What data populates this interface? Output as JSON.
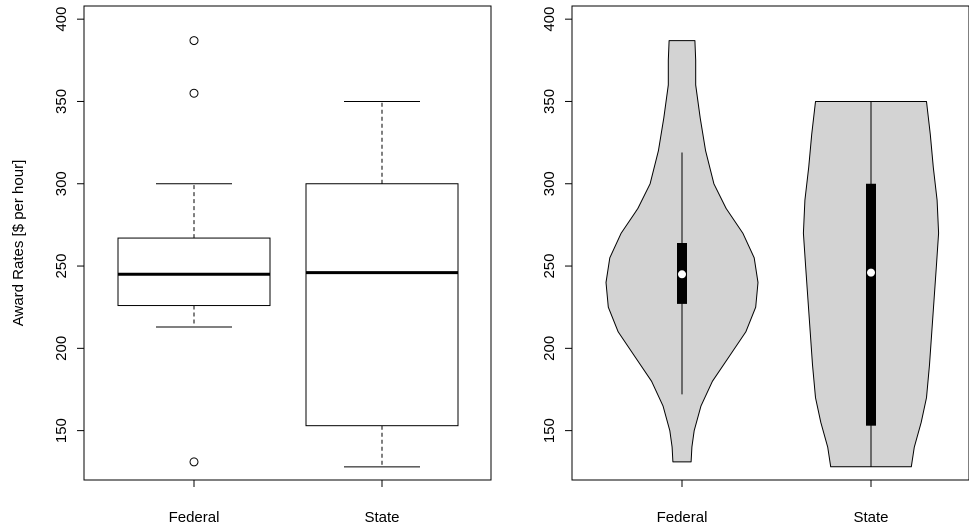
{
  "chart_data": [
    {
      "type": "boxplot",
      "ylabel": "Award Rates [$ per hour]",
      "ylim": [
        120,
        408
      ],
      "yticks": [
        150,
        200,
        250,
        300,
        350,
        400
      ],
      "categories": [
        "Federal",
        "State"
      ],
      "boxes": [
        {
          "name": "Federal",
          "whisker_low": 213,
          "q1": 226,
          "median": 245,
          "q3": 267,
          "whisker_high": 300,
          "outliers": [
            131,
            355,
            387
          ]
        },
        {
          "name": "State",
          "whisker_low": 128,
          "q1": 153,
          "median": 246,
          "q3": 300,
          "whisker_high": 350,
          "outliers": []
        }
      ]
    },
    {
      "type": "violin",
      "ylim": [
        120,
        408
      ],
      "yticks": [
        150,
        200,
        250,
        300,
        350,
        400
      ],
      "categories": [
        "Federal",
        "State"
      ],
      "violin_fill": "#d3d3d3",
      "violins": [
        {
          "name": "Federal",
          "median": 245,
          "q1": 227,
          "q3": 264,
          "whisker_low": 172,
          "whisker_high": 319,
          "density": [
            [
              131,
              0.12
            ],
            [
              140,
              0.13
            ],
            [
              150,
              0.16
            ],
            [
              165,
              0.25
            ],
            [
              180,
              0.4
            ],
            [
              195,
              0.62
            ],
            [
              210,
              0.84
            ],
            [
              225,
              0.97
            ],
            [
              240,
              1.0
            ],
            [
              255,
              0.95
            ],
            [
              270,
              0.8
            ],
            [
              285,
              0.58
            ],
            [
              300,
              0.42
            ],
            [
              320,
              0.31
            ],
            [
              340,
              0.24
            ],
            [
              360,
              0.18
            ],
            [
              375,
              0.18
            ],
            [
              387,
              0.17
            ]
          ]
        },
        {
          "name": "State",
          "median": 246,
          "q1": 153,
          "q3": 300,
          "whisker_low": 128,
          "whisker_high": 350,
          "density": [
            [
              128,
              0.53
            ],
            [
              140,
              0.57
            ],
            [
              155,
              0.66
            ],
            [
              170,
              0.73
            ],
            [
              190,
              0.77
            ],
            [
              210,
              0.8
            ],
            [
              230,
              0.83
            ],
            [
              250,
              0.86
            ],
            [
              270,
              0.89
            ],
            [
              290,
              0.87
            ],
            [
              310,
              0.82
            ],
            [
              330,
              0.78
            ],
            [
              350,
              0.73
            ]
          ]
        }
      ]
    }
  ]
}
